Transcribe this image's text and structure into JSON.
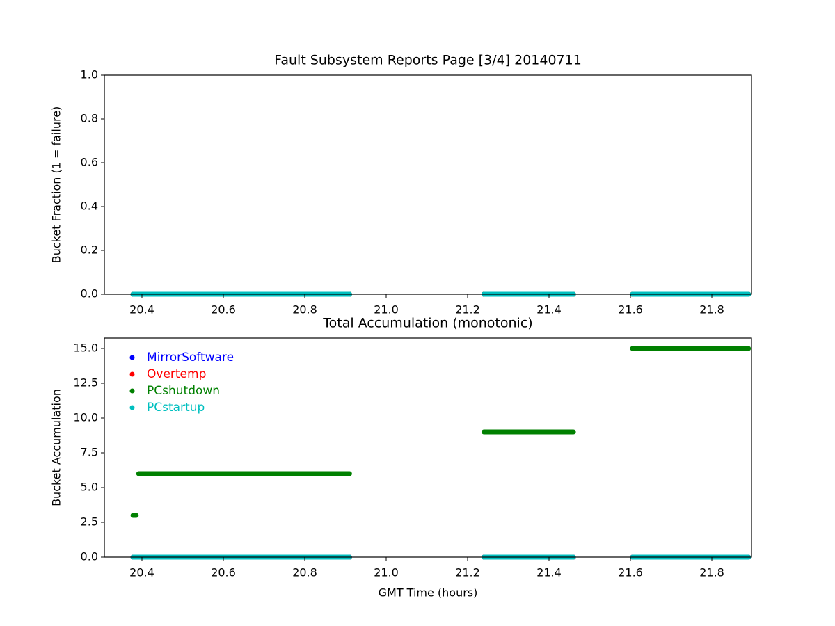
{
  "chart_data": [
    {
      "type": "line",
      "title": "Fault Subsystem Reports Page [3/4] 20140711",
      "ylabel": "Bucket Fraction (1 = failure)",
      "x": [
        20.378,
        20.386,
        20.389,
        20.392,
        20.91,
        21.0,
        21.24,
        21.46,
        21.5,
        21.605,
        21.89
      ],
      "series": [
        {
          "color": "#0000ff",
          "values": [
            0,
            0,
            0,
            0,
            0,
            null,
            0,
            0,
            null,
            0,
            0
          ]
        },
        {
          "color": "#ff0000",
          "values": [
            0,
            0,
            0,
            0,
            0,
            null,
            0,
            0,
            null,
            0,
            0
          ]
        },
        {
          "color": "#008000",
          "values": [
            0,
            0,
            0,
            0,
            0,
            null,
            0,
            0,
            null,
            0,
            0
          ]
        },
        {
          "color": "#00bfbf",
          "values": [
            0,
            0,
            0,
            0,
            0,
            null,
            0,
            0,
            null,
            0,
            0
          ]
        }
      ],
      "xlim": [
        20.3077,
        21.8974
      ],
      "ylim": [
        0,
        1
      ],
      "xticks": [
        20.4,
        20.6,
        20.8,
        {
          "value": 21.0,
          "label": "21.0"
        },
        21.2,
        21.4,
        21.6,
        21.8
      ],
      "yticks": [
        {
          "value": 0,
          "label": "0.0"
        },
        0.2,
        0.4,
        0.6,
        0.8,
        {
          "value": 1,
          "label": "1.0"
        }
      ]
    },
    {
      "type": "line",
      "title": "Total Accumulation (monotonic)",
      "xlabel": "GMT Time (hours)",
      "ylabel": "Bucket Accumulation",
      "x": [
        20.378,
        20.386,
        20.389,
        20.392,
        20.91,
        21.0,
        21.24,
        21.46,
        21.5,
        21.605,
        21.89
      ],
      "series": [
        {
          "name": "MirrorSoftware",
          "color": "#0000ff",
          "values": [
            0,
            0,
            0,
            0,
            0,
            null,
            0,
            0,
            null,
            0,
            0
          ]
        },
        {
          "name": "Overtemp",
          "color": "#ff0000",
          "values": [
            0,
            0,
            0,
            0,
            0,
            null,
            0,
            0,
            null,
            0,
            0
          ]
        },
        {
          "name": "PCshutdown",
          "color": "#008000",
          "values": [
            3,
            3,
            null,
            6,
            6,
            null,
            9,
            9,
            null,
            15,
            15
          ]
        },
        {
          "name": "PCstartup",
          "color": "#00bfbf",
          "values": [
            0,
            0,
            0,
            0,
            0,
            null,
            0,
            0,
            null,
            0,
            0
          ]
        }
      ],
      "xlim": [
        20.3077,
        21.8974
      ],
      "ylim": [
        0,
        15.75
      ],
      "xticks": [
        20.4,
        20.6,
        20.8,
        {
          "value": 21.0,
          "label": "21.0"
        },
        21.2,
        21.4,
        21.6,
        21.8
      ],
      "yticks": [
        {
          "value": 0,
          "label": "0.0"
        },
        2.5,
        {
          "value": 5,
          "label": "5.0"
        },
        7.5,
        {
          "value": 10,
          "label": "10.0"
        },
        12.5,
        {
          "value": 15,
          "label": "15.0"
        }
      ],
      "legend": "upper left"
    }
  ]
}
